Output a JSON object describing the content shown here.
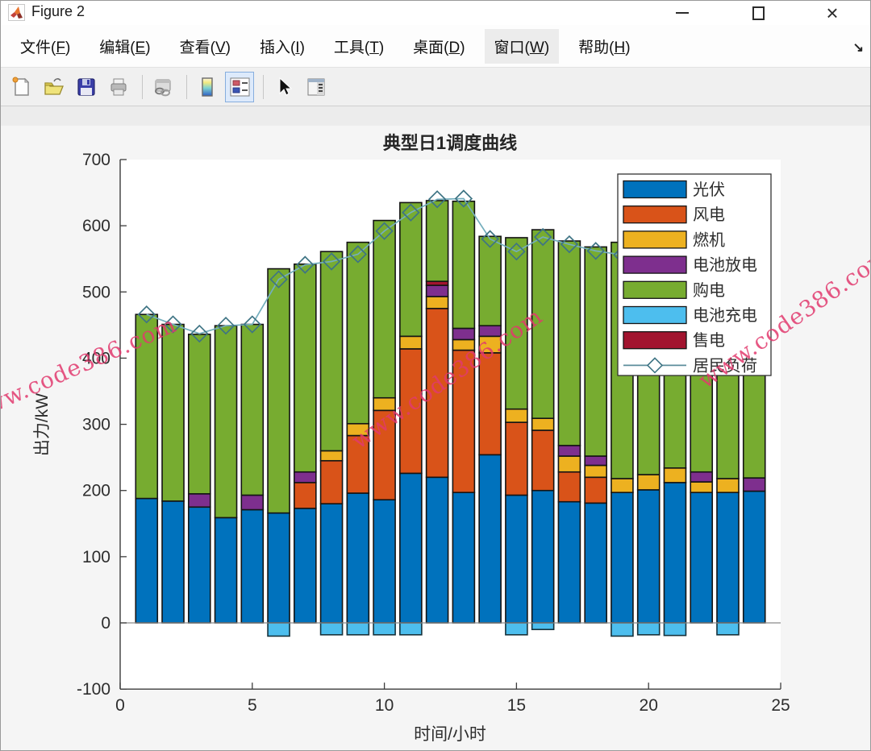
{
  "window": {
    "title": "Figure 2",
    "icon": "matlab-logo",
    "controls": {
      "minimize": "minimize",
      "maximize": "maximize",
      "close": "×"
    }
  },
  "menu_bar": {
    "items": [
      {
        "label": "文件(F)",
        "key": "F"
      },
      {
        "label": "编辑(E)",
        "key": "E"
      },
      {
        "label": "查看(V)",
        "key": "V"
      },
      {
        "label": "插入(I)",
        "key": "I"
      },
      {
        "label": "工具(T)",
        "key": "T"
      },
      {
        "label": "桌面(D)",
        "key": "D"
      },
      {
        "label": "窗口(W)",
        "key": "W",
        "active": true
      },
      {
        "label": "帮助(H)",
        "key": "H"
      }
    ],
    "dock_arrow": "↘"
  },
  "toolbar": {
    "buttons": [
      {
        "name": "new-figure",
        "icon": "new-document-icon"
      },
      {
        "name": "open-file",
        "icon": "open-folder-icon"
      },
      {
        "name": "save-figure",
        "icon": "save-floppy-icon"
      },
      {
        "name": "print-figure",
        "icon": "printer-icon"
      },
      {
        "name": "link-plot",
        "icon": "link-icon"
      },
      {
        "name": "insert-colorbar",
        "icon": "colorbar-icon"
      },
      {
        "name": "insert-legend",
        "icon": "legend-icon",
        "active": true
      },
      {
        "name": "edit-plot",
        "icon": "cursor-arrow-icon"
      },
      {
        "name": "plot-browser",
        "icon": "panel-list-icon"
      }
    ]
  },
  "watermark": {
    "text": "www.code386.com",
    "color": "#e23a6e"
  },
  "chart_data": {
    "type": "bar",
    "stacked": true,
    "title": "典型日1调度曲线",
    "xlabel": "时间/小时",
    "ylabel": "出力/kW",
    "xlim": [
      0,
      25
    ],
    "ylim": [
      -100,
      700
    ],
    "xticks": [
      0,
      5,
      10,
      15,
      20,
      25
    ],
    "yticks": [
      -100,
      0,
      100,
      200,
      300,
      400,
      500,
      600,
      700
    ],
    "grid": false,
    "legend_position": "top-right",
    "hours": [
      1,
      2,
      3,
      4,
      5,
      6,
      7,
      8,
      9,
      10,
      11,
      12,
      13,
      14,
      15,
      16,
      17,
      18,
      19,
      20,
      21,
      22,
      23,
      24
    ],
    "positive_stack_order": [
      "光伏",
      "风电",
      "燃机",
      "电池放电",
      "售电",
      "购电"
    ],
    "negative_stack_order": [
      "电池充电"
    ],
    "series": [
      {
        "name": "光伏",
        "color": "#0072BD",
        "values": [
          188,
          184,
          175,
          159,
          171,
          166,
          173,
          180,
          196,
          186,
          226,
          220,
          197,
          254,
          193,
          200,
          183,
          181,
          197,
          201,
          212,
          197,
          197,
          199
        ]
      },
      {
        "name": "风电",
        "color": "#D95319",
        "values": [
          0,
          0,
          0,
          0,
          0,
          0,
          39,
          65,
          87,
          135,
          188,
          255,
          215,
          154,
          110,
          91,
          45,
          39,
          0,
          0,
          0,
          0,
          0,
          0
        ]
      },
      {
        "name": "燃机",
        "color": "#EDB120",
        "values": [
          0,
          0,
          0,
          0,
          0,
          0,
          0,
          15,
          18,
          19,
          19,
          18,
          16,
          25,
          20,
          18,
          24,
          18,
          21,
          23,
          22,
          16,
          21,
          0
        ]
      },
      {
        "name": "电池放电",
        "color": "#7E2F8E",
        "values": [
          0,
          0,
          20,
          0,
          22,
          0,
          16,
          0,
          0,
          0,
          0,
          17,
          17,
          16,
          0,
          0,
          16,
          14,
          0,
          0,
          0,
          15,
          0,
          20
        ]
      },
      {
        "name": "购电",
        "color": "#77AC30",
        "values": [
          278,
          267,
          241,
          290,
          258,
          369,
          314,
          301,
          274,
          268,
          202,
          122,
          192,
          135,
          259,
          285,
          309,
          316,
          357,
          346,
          334,
          337,
          345,
          341
        ]
      },
      {
        "name": "电池充电",
        "color": "#4DBEEE",
        "values": [
          0,
          0,
          0,
          0,
          0,
          -20,
          0,
          -18,
          -18,
          -18,
          -18,
          0,
          0,
          0,
          -18,
          -10,
          0,
          0,
          -20,
          -18,
          -19,
          0,
          -18,
          0
        ]
      },
      {
        "name": "售电",
        "color": "#A2142F",
        "values": [
          0,
          0,
          0,
          0,
          0,
          0,
          0,
          0,
          0,
          0,
          0,
          6,
          0,
          0,
          0,
          0,
          0,
          0,
          0,
          0,
          0,
          0,
          0,
          0
        ]
      }
    ],
    "line_series": {
      "name": "居民负荷",
      "marker": "diamond",
      "color": "#74AEBD",
      "marker_edge": "#3E7484",
      "values": [
        466,
        451,
        437,
        449,
        451,
        519,
        541,
        546,
        557,
        592,
        620,
        640,
        641,
        580,
        561,
        583,
        572,
        562,
        556,
        552,
        549,
        565,
        545,
        560
      ]
    },
    "legend_entries": [
      {
        "label": "光伏",
        "type": "patch",
        "color": "#0072BD"
      },
      {
        "label": "风电",
        "type": "patch",
        "color": "#D95319"
      },
      {
        "label": "燃机",
        "type": "patch",
        "color": "#EDB120"
      },
      {
        "label": "电池放电",
        "type": "patch",
        "color": "#7E2F8E"
      },
      {
        "label": "购电",
        "type": "patch",
        "color": "#77AC30"
      },
      {
        "label": "电池充电",
        "type": "patch",
        "color": "#4DBEEE"
      },
      {
        "label": "售电",
        "type": "patch",
        "color": "#A2142F"
      },
      {
        "label": "居民负荷",
        "type": "line",
        "color": "#74AEBD"
      }
    ]
  }
}
